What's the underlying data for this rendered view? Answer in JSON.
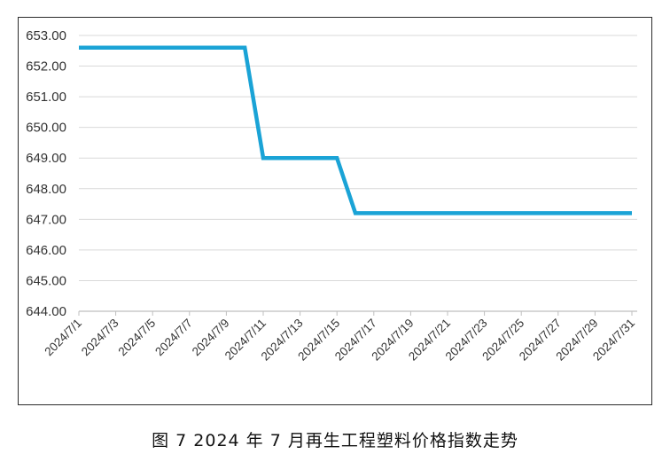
{
  "caption": "图 7  2024 年 7 月再生工程塑料价格指数走势",
  "chart_data": {
    "type": "line",
    "title": "",
    "xlabel": "",
    "ylabel": "",
    "ylim": [
      644.0,
      653.0
    ],
    "yticks": [
      "644.00",
      "645.00",
      "646.00",
      "647.00",
      "648.00",
      "649.00",
      "650.00",
      "651.00",
      "652.00",
      "653.00"
    ],
    "x_tick_labels": [
      "2024/7/1",
      "2024/7/3",
      "2024/7/5",
      "2024/7/7",
      "2024/7/9",
      "2024/7/11",
      "2024/7/13",
      "2024/7/15",
      "2024/7/17",
      "2024/7/19",
      "2024/7/21",
      "2024/7/23",
      "2024/7/25",
      "2024/7/27",
      "2024/7/29",
      "2024/7/31"
    ],
    "x": [
      "2024/7/1",
      "2024/7/2",
      "2024/7/3",
      "2024/7/4",
      "2024/7/5",
      "2024/7/6",
      "2024/7/7",
      "2024/7/8",
      "2024/7/9",
      "2024/7/10",
      "2024/7/11",
      "2024/7/12",
      "2024/7/13",
      "2024/7/14",
      "2024/7/15",
      "2024/7/16",
      "2024/7/17",
      "2024/7/18",
      "2024/7/19",
      "2024/7/20",
      "2024/7/21",
      "2024/7/22",
      "2024/7/23",
      "2024/7/24",
      "2024/7/25",
      "2024/7/26",
      "2024/7/27",
      "2024/7/28",
      "2024/7/29",
      "2024/7/30",
      "2024/7/31"
    ],
    "series": [
      {
        "values": [
          652.6,
          652.6,
          652.6,
          652.6,
          652.6,
          652.6,
          652.6,
          652.6,
          652.6,
          652.6,
          649.0,
          649.0,
          649.0,
          649.0,
          649.0,
          647.2,
          647.2,
          647.2,
          647.2,
          647.2,
          647.2,
          647.2,
          647.2,
          647.2,
          647.2,
          647.2,
          647.2,
          647.2,
          647.2,
          647.2,
          647.2
        ],
        "color": "#1AA3D6"
      }
    ],
    "grid": true,
    "legend": "none"
  }
}
